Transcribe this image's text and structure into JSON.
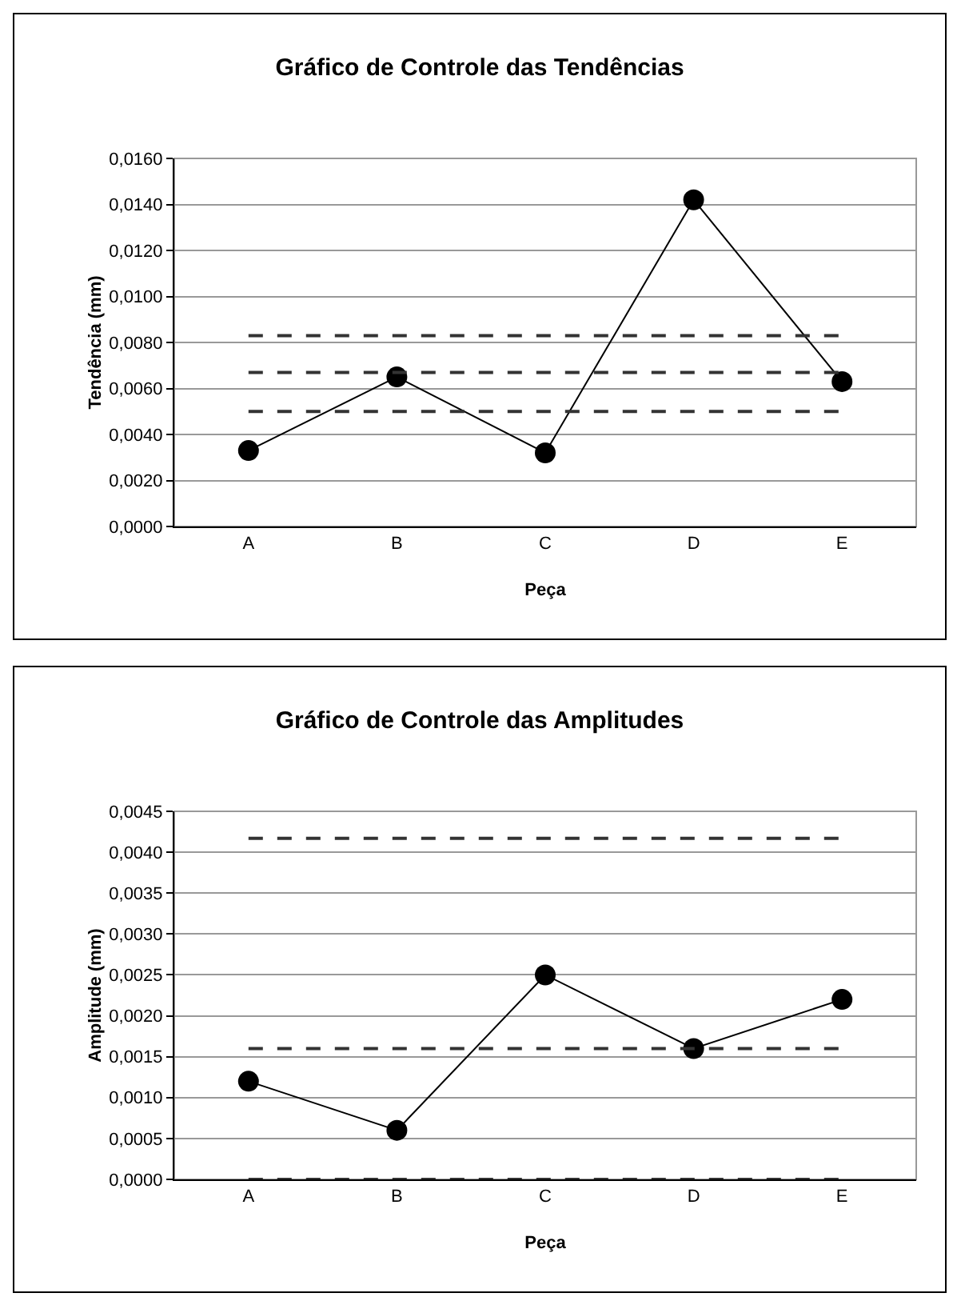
{
  "chart_data": [
    {
      "type": "line",
      "title": "Gráfico de Controle das Tendências",
      "xlabel": "Peça",
      "ylabel": "Tendência (mm)",
      "categories": [
        "A",
        "B",
        "C",
        "D",
        "E"
      ],
      "series": [
        {
          "color": "#000000",
          "values": [
            0.0033,
            0.0065,
            0.0032,
            0.0142,
            0.0063
          ]
        }
      ],
      "ylim": [
        0,
        0.016
      ],
      "yticks": [
        {
          "value": 0,
          "label": "0,0000"
        },
        {
          "value": 0.002,
          "label": "0,0020"
        },
        {
          "value": 0.004,
          "label": "0,0040"
        },
        {
          "value": 0.006,
          "label": "0,0060"
        },
        {
          "value": 0.008,
          "label": "0,0080"
        },
        {
          "value": 0.01,
          "label": "0,0100"
        },
        {
          "value": 0.012,
          "label": "0,0120"
        },
        {
          "value": 0.014,
          "label": "0,0140"
        },
        {
          "value": 0.016,
          "label": "0,0160"
        }
      ],
      "ref_lines": [
        {
          "axis": "y",
          "value": 0.0083,
          "color": "#333333",
          "line_style": "dashed"
        },
        {
          "axis": "y",
          "value": 0.0067,
          "color": "#333333",
          "line_style": "dashed"
        },
        {
          "axis": "y",
          "value": 0.005,
          "color": "#333333",
          "line_style": "dashed"
        }
      ],
      "grid": "y",
      "marker": "circle",
      "line_style": "solid"
    },
    {
      "type": "line",
      "title": "Gráfico de Controle das Amplitudes",
      "xlabel": "Peça",
      "ylabel": "Amplitude (mm)",
      "categories": [
        "A",
        "B",
        "C",
        "D",
        "E"
      ],
      "series": [
        {
          "color": "#000000",
          "values": [
            0.0012,
            0.0006,
            0.0025,
            0.0016,
            0.0022
          ]
        }
      ],
      "ylim": [
        0,
        0.0045
      ],
      "yticks": [
        {
          "value": 0,
          "label": "0,0000"
        },
        {
          "value": 0.0005,
          "label": "0,0005"
        },
        {
          "value": 0.001,
          "label": "0,0010"
        },
        {
          "value": 0.0015,
          "label": "0,0015"
        },
        {
          "value": 0.002,
          "label": "0,0020"
        },
        {
          "value": 0.0025,
          "label": "0,0025"
        },
        {
          "value": 0.003,
          "label": "0,0030"
        },
        {
          "value": 0.0035,
          "label": "0,0035"
        },
        {
          "value": 0.004,
          "label": "0,0040"
        },
        {
          "value": 0.0045,
          "label": "0,0045"
        }
      ],
      "ref_lines": [
        {
          "axis": "y",
          "value": 0.00417,
          "color": "#333333",
          "line_style": "dashed"
        },
        {
          "axis": "y",
          "value": 0.0016,
          "color": "#333333",
          "line_style": "dashed"
        },
        {
          "axis": "y",
          "value": 0,
          "color": "#333333",
          "line_style": "dashed"
        }
      ],
      "grid": "y",
      "marker": "circle",
      "line_style": "solid"
    }
  ]
}
